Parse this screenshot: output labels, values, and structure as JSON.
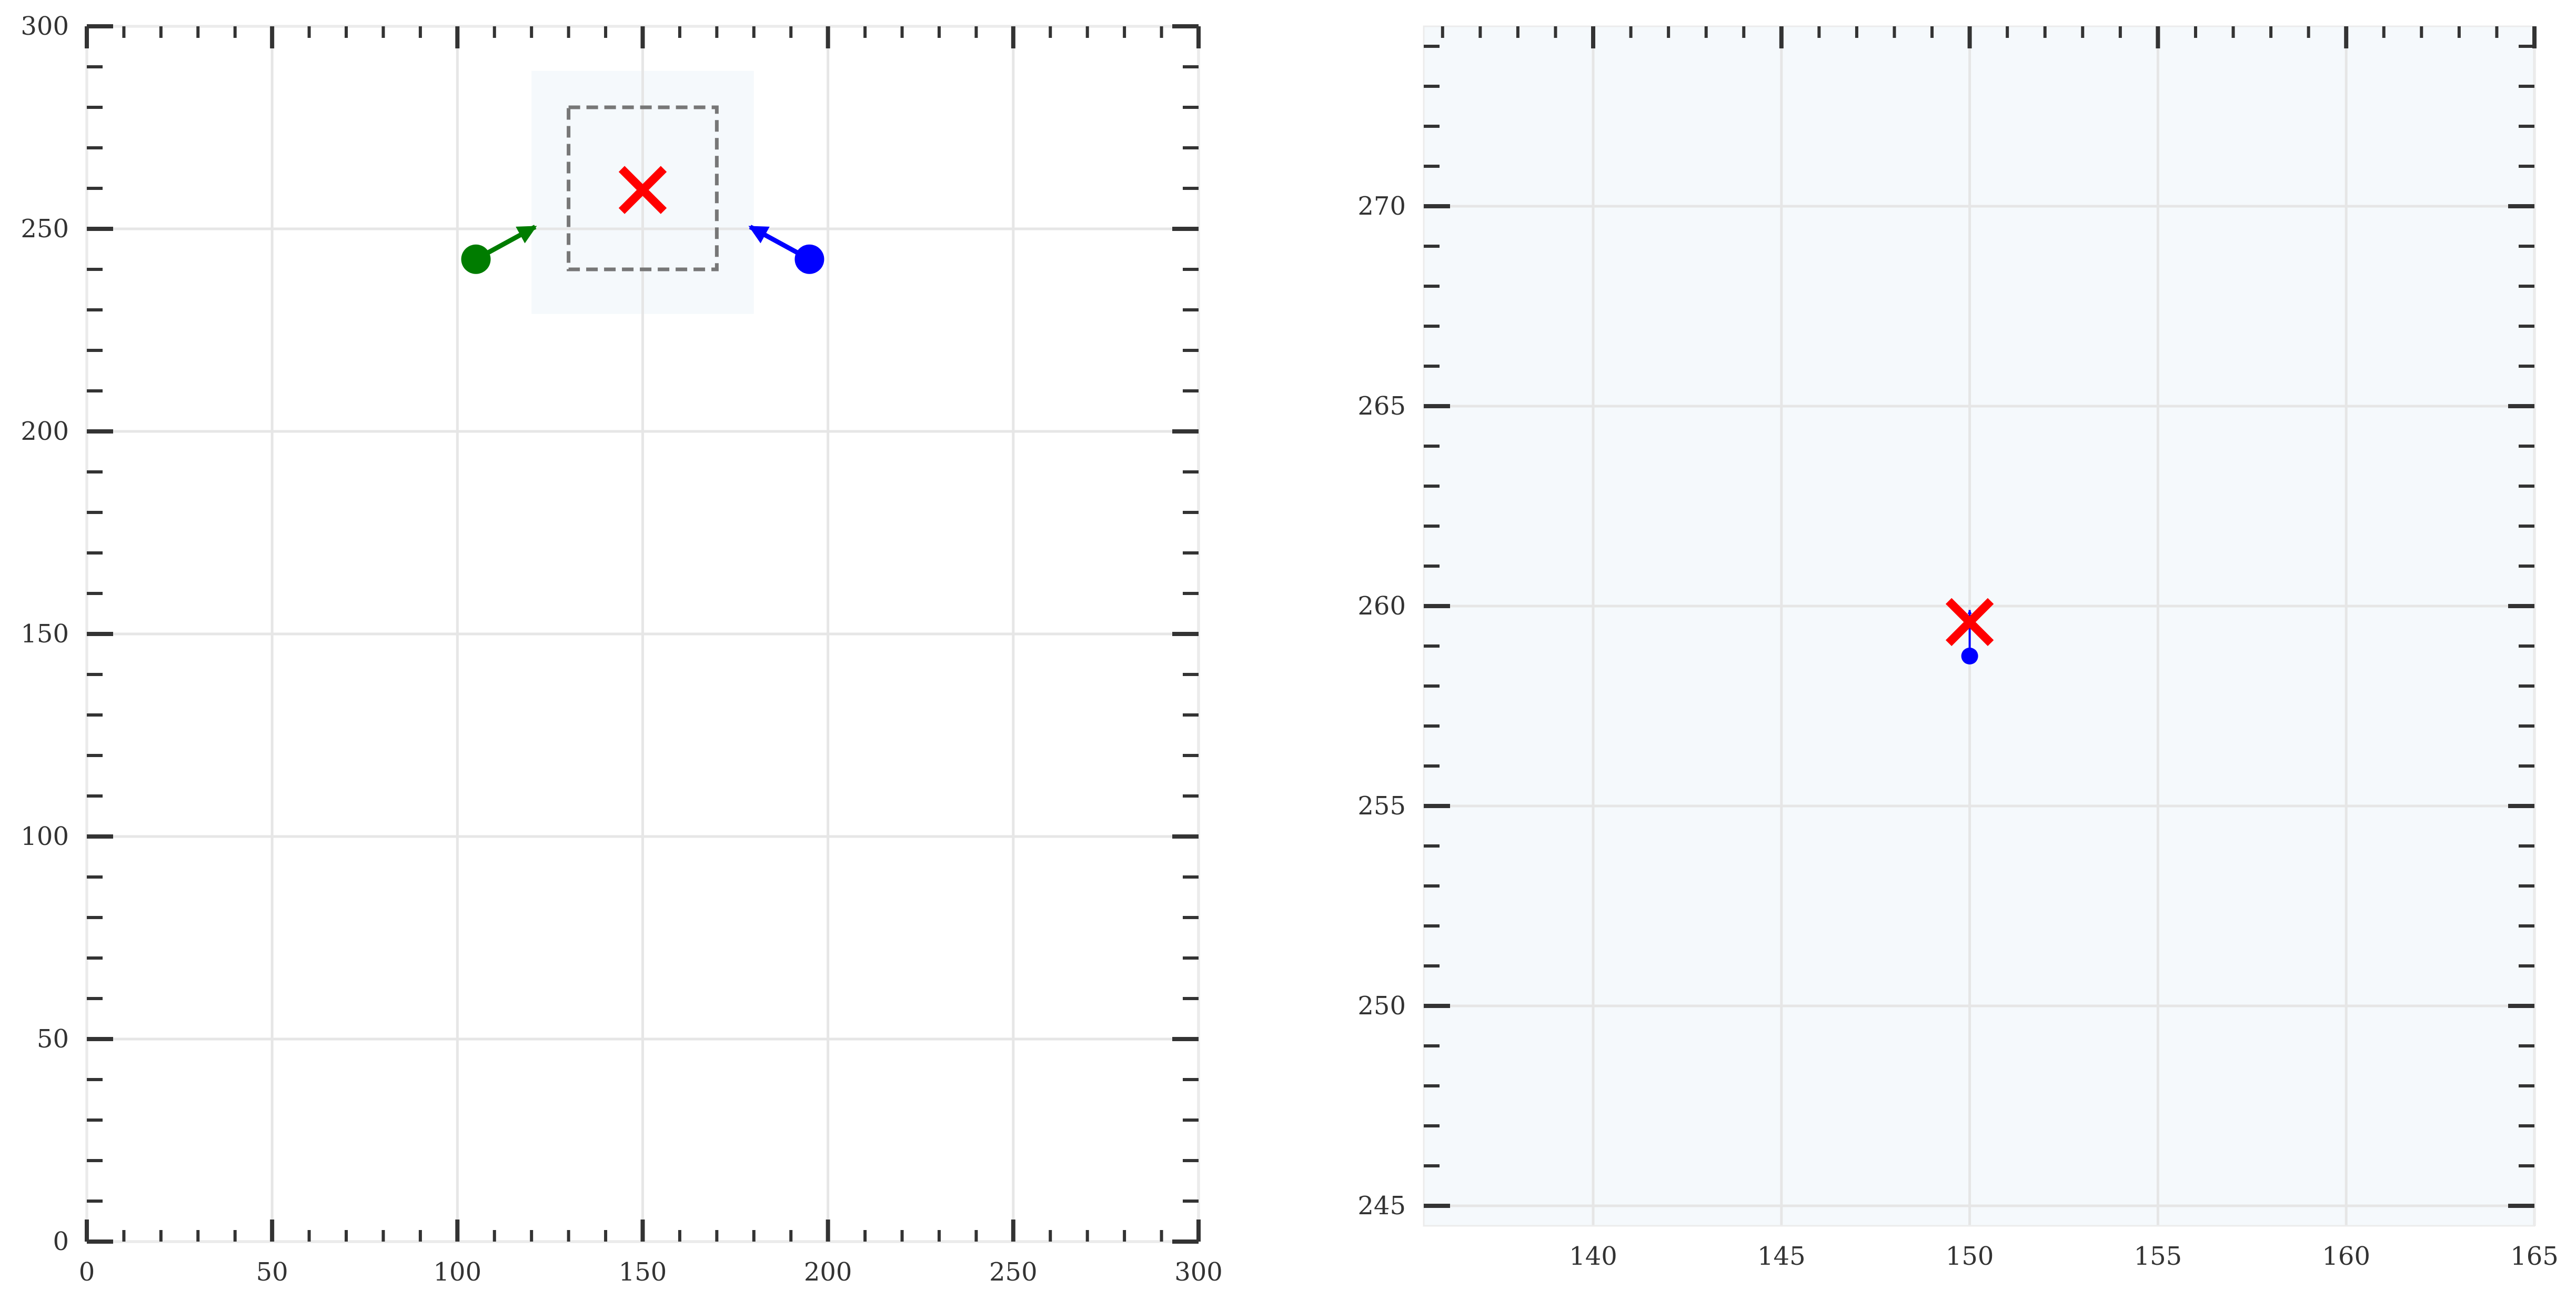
{
  "chart_data": [
    {
      "type": "scatter",
      "title": "",
      "xlabel": "",
      "ylabel": "",
      "xlim": [
        0,
        300
      ],
      "ylim": [
        0,
        300
      ],
      "xticks": [
        0,
        50,
        100,
        150,
        200,
        250,
        300
      ],
      "yticks": [
        0,
        50,
        100,
        150,
        200,
        250,
        300
      ],
      "grid": true,
      "shaded_region": {
        "x": [
          120,
          180
        ],
        "y": [
          229,
          289
        ],
        "color": "#f5f9fc"
      },
      "dashed_box": {
        "x": [
          130,
          170
        ],
        "y": [
          240,
          280
        ],
        "color": "#777777"
      },
      "target": {
        "x": 150,
        "y": 259.6,
        "color": "#ff0000",
        "marker": "x-cross"
      },
      "points": [
        {
          "x": 105,
          "y": 242.5,
          "color": "#007c00",
          "arrow_to": {
            "x": 121,
            "y": 250.5
          }
        },
        {
          "x": 195,
          "y": 242.5,
          "color": "#0000ff",
          "arrow_to": {
            "x": 179,
            "y": 250.5
          }
        }
      ]
    },
    {
      "type": "scatter",
      "title": "",
      "xlabel": "",
      "ylabel": "",
      "xlim": [
        135.5,
        165
      ],
      "ylim": [
        244.5,
        274.5
      ],
      "xticks": [
        140,
        145,
        150,
        155,
        160,
        165
      ],
      "yticks": [
        245,
        250,
        255,
        260,
        265,
        270
      ],
      "grid": true,
      "background": "#f5f9fc",
      "target": {
        "x": 150,
        "y": 259.6,
        "color": "#ff0000",
        "marker": "x-cross"
      },
      "points": [
        {
          "x": 150,
          "y": 258.75,
          "color": "#0000ff",
          "arrow_to": {
            "x": 150,
            "y": 259.9
          }
        }
      ]
    }
  ]
}
